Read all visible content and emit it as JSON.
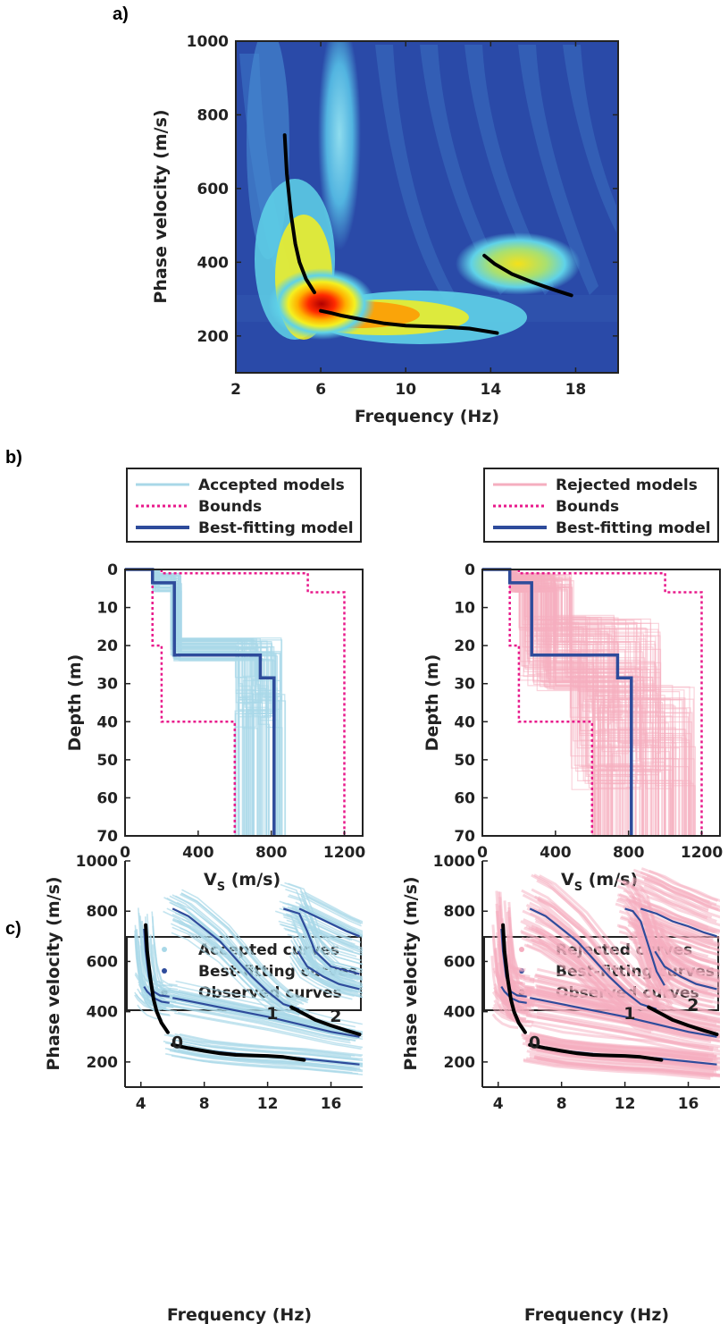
{
  "panel_labels": {
    "a": "a)",
    "b": "b)",
    "c": "c)"
  },
  "colors": {
    "accepted": "#a9d8e8",
    "rejected": "#f5aebf",
    "best": "#2e4b9b",
    "bounds": "#e8198b",
    "observed": "#000000"
  },
  "chart_data": [
    {
      "id": "a",
      "type": "heatmap",
      "xlabel": "Frequency (Hz)",
      "ylabel": "Phase velocity (m/s)",
      "xlim": [
        2,
        20
      ],
      "ylim": [
        100,
        1000
      ],
      "xticks": [
        2,
        6,
        10,
        14,
        18
      ],
      "yticks": [
        200,
        400,
        600,
        800,
        1000
      ],
      "observed_curves": [
        {
          "name": "mode0_low",
          "x": [
            4.3,
            4.4,
            4.6,
            4.8,
            5.0,
            5.3,
            5.7
          ],
          "y": [
            745,
            640,
            530,
            450,
            400,
            355,
            318
          ]
        },
        {
          "name": "mode0",
          "x": [
            6.0,
            6.5,
            7.0,
            8.0,
            9.0,
            10.0,
            11.0,
            12.0,
            13.0,
            14.3
          ],
          "y": [
            268,
            262,
            255,
            244,
            234,
            228,
            226,
            224,
            220,
            208
          ]
        },
        {
          "name": "mode1",
          "x": [
            13.7,
            14.2,
            15.0,
            16.0,
            17.0,
            17.8
          ],
          "y": [
            418,
            395,
            368,
            345,
            325,
            310
          ]
        }
      ]
    },
    {
      "id": "b-left",
      "type": "line",
      "xlabel": "V",
      "xlabel_sub": "S",
      "xlabel_unit": " (m/s)",
      "ylabel": "Depth (m)",
      "xlim": [
        0,
        1300
      ],
      "ylim": [
        70,
        0
      ],
      "xticks": [
        0,
        400,
        800,
        1200
      ],
      "yticks": [
        0,
        10,
        20,
        30,
        40,
        50,
        60,
        70
      ],
      "legend": [
        "Accepted models",
        "Bounds",
        "Best-fitting model"
      ],
      "best_model": {
        "vs": [
          0,
          150,
          150,
          270,
          270,
          740,
          740,
          815,
          815
        ],
        "depth": [
          0,
          0,
          3.5,
          3.5,
          22.5,
          22.5,
          28.5,
          28.5,
          70
        ]
      },
      "bounds_lower": {
        "vs": [
          150,
          150,
          200,
          200,
          600,
          600
        ],
        "depth": [
          0,
          20,
          20,
          40,
          40,
          70
        ]
      },
      "bounds_upper": {
        "vs": [
          200,
          200,
          1000,
          1000,
          1200,
          1200
        ],
        "depth": [
          0,
          1,
          1,
          6,
          6,
          70
        ]
      }
    },
    {
      "id": "b-right",
      "type": "line",
      "xlabel": "V",
      "xlabel_sub": "S",
      "xlabel_unit": " (m/s)",
      "ylabel": "Depth (m)",
      "xlim": [
        0,
        1300
      ],
      "ylim": [
        70,
        0
      ],
      "xticks": [
        0,
        400,
        800,
        1200
      ],
      "yticks": [
        0,
        10,
        20,
        30,
        40,
        50,
        60,
        70
      ],
      "legend": [
        "Rejected models",
        "Bounds",
        "Best-fitting model"
      ],
      "best_model": {
        "vs": [
          0,
          150,
          150,
          270,
          270,
          740,
          740,
          815,
          815
        ],
        "depth": [
          0,
          0,
          3.5,
          3.5,
          22.5,
          22.5,
          28.5,
          28.5,
          70
        ]
      },
      "bounds_lower": {
        "vs": [
          150,
          150,
          200,
          200,
          600,
          600
        ],
        "depth": [
          0,
          20,
          20,
          40,
          40,
          70
        ]
      },
      "bounds_upper": {
        "vs": [
          200,
          200,
          1000,
          1000,
          1200,
          1200
        ],
        "depth": [
          0,
          1,
          1,
          6,
          6,
          70
        ]
      }
    },
    {
      "id": "c-left",
      "type": "scatter",
      "xlabel": "Frequency (Hz)",
      "ylabel": "Phase velocity (m/s)",
      "xlim": [
        3,
        18
      ],
      "ylim": [
        100,
        1000
      ],
      "xticks": [
        4,
        8,
        12,
        16
      ],
      "yticks": [
        200,
        400,
        600,
        800,
        1000
      ],
      "legend": [
        "Accepted curves",
        "Best-fitting curves",
        "Observed curves"
      ],
      "mode_labels": [
        {
          "text": "0",
          "x": 6.3,
          "y": 255
        },
        {
          "text": "1",
          "x": 12.3,
          "y": 370
        },
        {
          "text": "2",
          "x": 16.3,
          "y": 360
        }
      ],
      "best_curves": [
        {
          "x": [
            4.2,
            4.3,
            4.5,
            4.8,
            5.2,
            5.8
          ],
          "y": [
            730,
            640,
            540,
            480,
            465,
            460
          ]
        },
        {
          "x": [
            4.2,
            4.4,
            4.8,
            5.3,
            5.8
          ],
          "y": [
            500,
            480,
            455,
            440,
            435
          ]
        },
        {
          "x": [
            6.0,
            8.0,
            10.0,
            12.0,
            14.0,
            16.0,
            17.8
          ],
          "y": [
            455,
            430,
            405,
            380,
            350,
            320,
            300
          ]
        },
        {
          "x": [
            6.0,
            8.0,
            10.0,
            12.0,
            14.0,
            17.8
          ],
          "y": [
            270,
            245,
            232,
            222,
            215,
            190
          ]
        },
        {
          "x": [
            6.0,
            7.0,
            8.0,
            9.0,
            10.0,
            11.0,
            12.0,
            13.0,
            14.0
          ],
          "y": [
            810,
            780,
            730,
            680,
            610,
            540,
            480,
            430,
            410
          ]
        },
        {
          "x": [
            13.9,
            14.5,
            15.5,
            16.5,
            17.8
          ],
          "y": [
            640,
            580,
            540,
            510,
            490
          ]
        },
        {
          "x": [
            13.0,
            14.0,
            14.5,
            15.0,
            16.0,
            17.8
          ],
          "y": [
            810,
            790,
            720,
            640,
            580,
            550
          ]
        },
        {
          "x": [
            14.0,
            15.0,
            16.0,
            17.0,
            17.8
          ],
          "y": [
            810,
            780,
            750,
            720,
            700
          ]
        }
      ],
      "observed_curves": [
        {
          "x": [
            4.3,
            4.4,
            4.6,
            4.8,
            5.0,
            5.3,
            5.7
          ],
          "y": [
            745,
            640,
            530,
            450,
            400,
            355,
            318
          ]
        },
        {
          "x": [
            6.0,
            7.0,
            8.0,
            9.0,
            10.0,
            11.0,
            12.0,
            13.0,
            14.3
          ],
          "y": [
            268,
            255,
            244,
            234,
            228,
            226,
            224,
            220,
            208
          ]
        },
        {
          "x": [
            13.5,
            14.2,
            15.0,
            16.0,
            17.0,
            17.8
          ],
          "y": [
            418,
            395,
            368,
            345,
            325,
            310
          ]
        }
      ]
    },
    {
      "id": "c-right",
      "type": "scatter",
      "xlabel": "Frequency (Hz)",
      "ylabel": "Phase velocity (m/s)",
      "xlim": [
        3,
        18
      ],
      "ylim": [
        100,
        1000
      ],
      "xticks": [
        4,
        8,
        12,
        16
      ],
      "yticks": [
        200,
        400,
        600,
        800,
        1000
      ],
      "legend": [
        "Rejected curves",
        "Best-fitting curves",
        "Observed curves"
      ],
      "mode_labels": [
        {
          "text": "0",
          "x": 6.3,
          "y": 255
        },
        {
          "text": "1",
          "x": 12.3,
          "y": 370
        },
        {
          "text": "2",
          "x": 16.3,
          "y": 405
        }
      ],
      "best_curves": [
        {
          "x": [
            4.2,
            4.3,
            4.5,
            4.8,
            5.2,
            5.8
          ],
          "y": [
            730,
            640,
            540,
            480,
            465,
            460
          ]
        },
        {
          "x": [
            4.2,
            4.4,
            4.8,
            5.3,
            5.8
          ],
          "y": [
            500,
            480,
            455,
            440,
            435
          ]
        },
        {
          "x": [
            6.0,
            8.0,
            10.0,
            12.0,
            14.0,
            16.0,
            17.8
          ],
          "y": [
            455,
            430,
            405,
            380,
            350,
            320,
            300
          ]
        },
        {
          "x": [
            6.0,
            8.0,
            10.0,
            12.0,
            14.0,
            17.8
          ],
          "y": [
            270,
            245,
            232,
            222,
            215,
            190
          ]
        },
        {
          "x": [
            6.0,
            7.0,
            8.0,
            9.0,
            10.0,
            11.0,
            12.0,
            13.0,
            14.0
          ],
          "y": [
            810,
            780,
            730,
            680,
            610,
            540,
            480,
            430,
            410
          ]
        },
        {
          "x": [
            13.9,
            14.5,
            15.5,
            16.5,
            17.8
          ],
          "y": [
            640,
            580,
            540,
            510,
            490
          ]
        },
        {
          "x": [
            12.0,
            12.5,
            13.0,
            13.5,
            14.0,
            14.5
          ],
          "y": [
            810,
            800,
            760,
            660,
            560,
            505
          ]
        },
        {
          "x": [
            13.0,
            14.0,
            15.0,
            16.0,
            17.0,
            17.8
          ],
          "y": [
            810,
            790,
            760,
            740,
            715,
            700
          ]
        }
      ],
      "observed_curves": [
        {
          "x": [
            4.3,
            4.4,
            4.6,
            4.8,
            5.0,
            5.3,
            5.7
          ],
          "y": [
            745,
            640,
            530,
            450,
            400,
            355,
            318
          ]
        },
        {
          "x": [
            6.0,
            7.0,
            8.0,
            9.0,
            10.0,
            11.0,
            12.0,
            13.0,
            14.3
          ],
          "y": [
            268,
            255,
            244,
            234,
            228,
            226,
            224,
            220,
            208
          ]
        },
        {
          "x": [
            13.5,
            14.2,
            15.0,
            16.0,
            17.0,
            17.8
          ],
          "y": [
            418,
            395,
            368,
            345,
            325,
            310
          ]
        }
      ]
    }
  ]
}
